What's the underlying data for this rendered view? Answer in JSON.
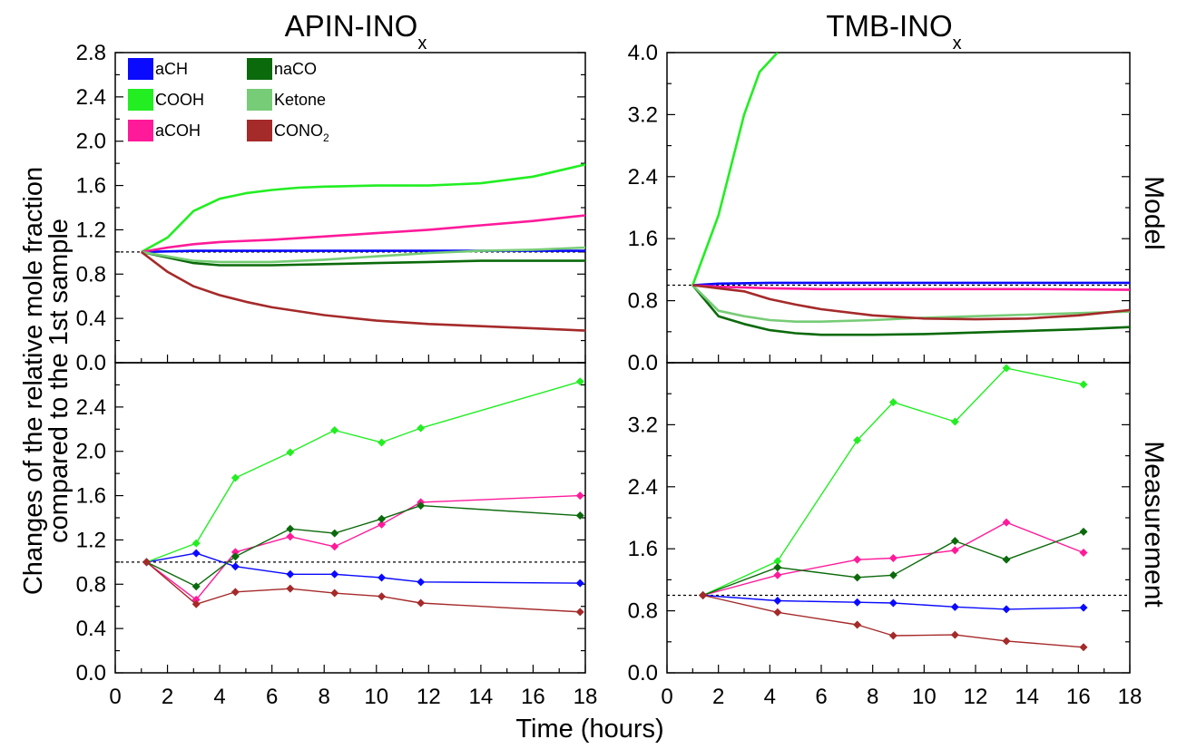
{
  "figure": {
    "xlabel": "Time (hours)",
    "ylabel_line1": "Changes of the relative mole fraction",
    "ylabel_line2": "compared to the 1st sample",
    "row_labels": [
      "Model",
      "Measurement"
    ],
    "col_titles": [
      {
        "main": "APIN-INO",
        "sub": "x"
      },
      {
        "main": "TMB-INO",
        "sub": "x"
      }
    ]
  },
  "legend": [
    {
      "key": "aCH",
      "label": "aCH",
      "sub": "",
      "color": "#0a0aff"
    },
    {
      "key": "COOH",
      "label": "COOH",
      "sub": "",
      "color": "#22ee22"
    },
    {
      "key": "aCOH",
      "label": "aCOH",
      "sub": "",
      "color": "#ff1a9a"
    },
    {
      "key": "naCO",
      "label": "naCO",
      "sub": "",
      "color": "#0b6a0b"
    },
    {
      "key": "Ketone",
      "label": "Ketone",
      "sub": "",
      "color": "#77cc77"
    },
    {
      "key": "CONO2",
      "label": "CONO",
      "sub": "2",
      "color": "#a52a2a"
    }
  ],
  "chart_data": [
    {
      "type": "line",
      "panel": "model-apin",
      "xlim": [
        0,
        18
      ],
      "ylim": [
        0,
        2.8
      ],
      "xticks": [
        "0",
        "2",
        "4",
        "6",
        "8",
        "10",
        "12",
        "14",
        "16",
        "18"
      ],
      "yticks": [
        "0.0",
        "0.4",
        "0.8",
        "1.2",
        "1.6",
        "2.0",
        "2.4",
        "2.8"
      ],
      "reference_y": 1.0,
      "series": [
        {
          "key": "aCH",
          "x": [
            1,
            3,
            6,
            10,
            14,
            18
          ],
          "y": [
            1.0,
            1.01,
            1.01,
            1.01,
            1.01,
            1.01
          ]
        },
        {
          "key": "COOH",
          "x": [
            1,
            2,
            3,
            4,
            5,
            6,
            7,
            8,
            10,
            12,
            14,
            16,
            18
          ],
          "y": [
            1.0,
            1.13,
            1.37,
            1.48,
            1.53,
            1.56,
            1.58,
            1.59,
            1.6,
            1.6,
            1.62,
            1.68,
            1.79
          ]
        },
        {
          "key": "aCOH",
          "x": [
            1,
            2,
            3,
            4,
            6,
            8,
            10,
            12,
            14,
            16,
            18
          ],
          "y": [
            1.0,
            1.04,
            1.07,
            1.09,
            1.11,
            1.14,
            1.17,
            1.2,
            1.24,
            1.28,
            1.33
          ]
        },
        {
          "key": "naCO",
          "x": [
            1,
            2,
            3,
            4,
            6,
            8,
            10,
            12,
            14,
            16,
            18
          ],
          "y": [
            1.0,
            0.95,
            0.9,
            0.88,
            0.88,
            0.89,
            0.9,
            0.91,
            0.92,
            0.92,
            0.92
          ]
        },
        {
          "key": "Ketone",
          "x": [
            1,
            2,
            3,
            4,
            6,
            8,
            10,
            12,
            14,
            16,
            18
          ],
          "y": [
            1.0,
            0.96,
            0.92,
            0.91,
            0.91,
            0.93,
            0.96,
            0.99,
            1.01,
            1.02,
            1.04
          ]
        },
        {
          "key": "CONO2",
          "x": [
            1,
            2,
            3,
            4,
            5,
            6,
            8,
            10,
            12,
            14,
            16,
            18
          ],
          "y": [
            1.0,
            0.82,
            0.69,
            0.61,
            0.55,
            0.5,
            0.43,
            0.38,
            0.35,
            0.33,
            0.31,
            0.29
          ]
        }
      ]
    },
    {
      "type": "line",
      "panel": "model-tmb",
      "xlim": [
        0,
        18
      ],
      "ylim": [
        0,
        4.0
      ],
      "xticks": [
        "0",
        "2",
        "4",
        "6",
        "8",
        "10",
        "12",
        "14",
        "16",
        "18"
      ],
      "yticks": [
        "0.0",
        "0.8",
        "1.6",
        "2.4",
        "3.2",
        "4.0"
      ],
      "reference_y": 1.0,
      "series": [
        {
          "key": "aCH",
          "x": [
            1,
            2,
            4,
            8,
            12,
            18
          ],
          "y": [
            1.0,
            1.02,
            1.03,
            1.03,
            1.03,
            1.03
          ]
        },
        {
          "key": "COOH",
          "x": [
            1,
            2,
            3,
            3.6,
            4.3
          ],
          "y": [
            1.0,
            1.9,
            3.2,
            3.75,
            4.0
          ]
        },
        {
          "key": "aCOH",
          "x": [
            1,
            2,
            4,
            6,
            10,
            14,
            18
          ],
          "y": [
            1.0,
            0.98,
            0.96,
            0.95,
            0.95,
            0.95,
            0.94
          ]
        },
        {
          "key": "naCO",
          "x": [
            1,
            2,
            3,
            4,
            5,
            6,
            8,
            10,
            12,
            14,
            16,
            18
          ],
          "y": [
            1.0,
            0.6,
            0.5,
            0.42,
            0.38,
            0.36,
            0.36,
            0.37,
            0.39,
            0.41,
            0.43,
            0.46
          ]
        },
        {
          "key": "Ketone",
          "x": [
            1,
            2,
            3,
            4,
            5,
            6,
            8,
            10,
            12,
            14,
            16,
            18
          ],
          "y": [
            1.0,
            0.67,
            0.6,
            0.55,
            0.53,
            0.53,
            0.55,
            0.58,
            0.6,
            0.62,
            0.64,
            0.66
          ]
        },
        {
          "key": "CONO2",
          "x": [
            1,
            2,
            3,
            4,
            5,
            6,
            8,
            10,
            12,
            14,
            16,
            18
          ],
          "y": [
            1.0,
            0.96,
            0.92,
            0.82,
            0.75,
            0.69,
            0.61,
            0.57,
            0.56,
            0.57,
            0.61,
            0.68
          ]
        }
      ]
    },
    {
      "type": "line",
      "panel": "measurement-apin",
      "xlim": [
        0,
        18
      ],
      "ylim": [
        0,
        2.8
      ],
      "xticks": [
        "0",
        "2",
        "4",
        "6",
        "8",
        "10",
        "12",
        "14",
        "16",
        "18"
      ],
      "yticks": [
        "0.0",
        "0.4",
        "0.8",
        "1.2",
        "1.6",
        "2.0",
        "2.4"
      ],
      "reference_y": 1.0,
      "series": [
        {
          "key": "aCH",
          "x": [
            1.2,
            3.1,
            4.6,
            6.7,
            8.4,
            10.2,
            11.7,
            17.8
          ],
          "y": [
            1.0,
            1.08,
            0.96,
            0.89,
            0.89,
            0.86,
            0.82,
            0.81
          ]
        },
        {
          "key": "COOH",
          "x": [
            1.2,
            3.1,
            4.6,
            6.7,
            8.4,
            10.2,
            11.7,
            17.8
          ],
          "y": [
            1.0,
            1.17,
            1.76,
            1.99,
            2.19,
            2.08,
            2.21,
            2.63
          ]
        },
        {
          "key": "aCOH",
          "x": [
            1.2,
            3.1,
            4.6,
            6.7,
            8.4,
            10.2,
            11.7,
            17.8
          ],
          "y": [
            1.0,
            0.66,
            1.09,
            1.23,
            1.14,
            1.34,
            1.54,
            1.6
          ]
        },
        {
          "key": "naCO",
          "x": [
            1.2,
            3.1,
            4.6,
            6.7,
            8.4,
            10.2,
            11.7,
            17.8
          ],
          "y": [
            1.0,
            0.78,
            1.05,
            1.3,
            1.26,
            1.39,
            1.51,
            1.42
          ]
        },
        {
          "key": "CONO2",
          "x": [
            1.2,
            3.1,
            4.6,
            6.7,
            8.4,
            10.2,
            11.7,
            17.8
          ],
          "y": [
            1.0,
            0.62,
            0.73,
            0.76,
            0.72,
            0.69,
            0.63,
            0.55
          ]
        }
      ]
    },
    {
      "type": "line",
      "panel": "measurement-tmb",
      "xlim": [
        0,
        18
      ],
      "ylim": [
        0,
        4.0
      ],
      "xticks": [
        "0",
        "2",
        "4",
        "6",
        "8",
        "10",
        "12",
        "14",
        "16",
        "18"
      ],
      "yticks": [
        "0.0",
        "0.8",
        "1.6",
        "2.4",
        "3.2"
      ],
      "reference_y": 1.0,
      "series": [
        {
          "key": "aCH",
          "x": [
            1.4,
            4.3,
            7.4,
            8.8,
            11.2,
            13.2,
            16.2
          ],
          "y": [
            1.0,
            0.93,
            0.91,
            0.9,
            0.85,
            0.82,
            0.84
          ]
        },
        {
          "key": "COOH",
          "x": [
            1.4,
            4.3,
            7.4,
            8.8,
            11.2,
            13.2,
            16.2
          ],
          "y": [
            1.0,
            1.44,
            3.0,
            3.49,
            3.24,
            3.93,
            3.72
          ]
        },
        {
          "key": "aCOH",
          "x": [
            1.4,
            4.3,
            7.4,
            8.8,
            11.2,
            13.2,
            16.2
          ],
          "y": [
            1.0,
            1.26,
            1.46,
            1.48,
            1.58,
            1.94,
            1.55
          ]
        },
        {
          "key": "naCO",
          "x": [
            1.4,
            4.3,
            7.4,
            8.8,
            11.2,
            13.2,
            16.2
          ],
          "y": [
            1.0,
            1.36,
            1.23,
            1.26,
            1.7,
            1.46,
            1.82
          ]
        },
        {
          "key": "CONO2",
          "x": [
            1.4,
            4.3,
            7.4,
            8.8,
            11.2,
            13.2,
            16.2
          ],
          "y": [
            1.0,
            0.78,
            0.62,
            0.48,
            0.49,
            0.41,
            0.33
          ]
        }
      ]
    }
  ]
}
